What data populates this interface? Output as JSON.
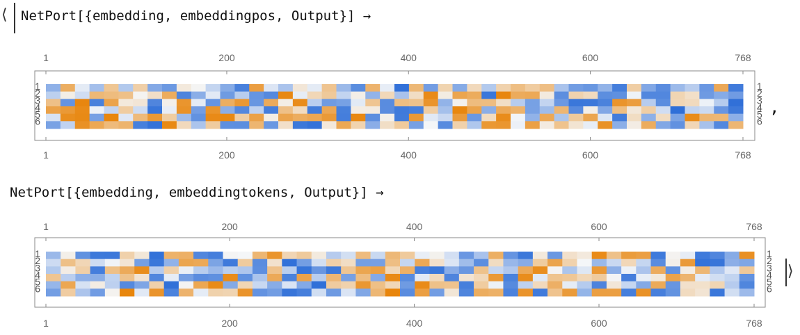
{
  "output": {
    "open_bracket": "⟨",
    "close_bracket": "⟩",
    "separator": ",",
    "arrow": "→"
  },
  "chart_data": [
    {
      "type": "heatmap",
      "label": "NetPort[{embedding, embeddingpos, Output}]",
      "rows": 6,
      "columns": 768,
      "x_ticks": [
        1,
        200,
        400,
        600,
        768
      ],
      "y_ticks": [
        1,
        2,
        3,
        4,
        5,
        6
      ],
      "colors": {
        "low": "#2f6fd8",
        "mid": "#f4f6f8",
        "high": "#e8850c"
      },
      "seed": 17
    },
    {
      "type": "heatmap",
      "label": "NetPort[{embedding, embeddingtokens, Output}]",
      "rows": 6,
      "columns": 768,
      "x_ticks": [
        1,
        200,
        400,
        600,
        768
      ],
      "y_ticks": [
        1,
        2,
        3,
        4,
        5,
        6
      ],
      "colors": {
        "low": "#2f6fd8",
        "mid": "#f4f6f8",
        "high": "#e8850c"
      },
      "seed": 91
    }
  ]
}
